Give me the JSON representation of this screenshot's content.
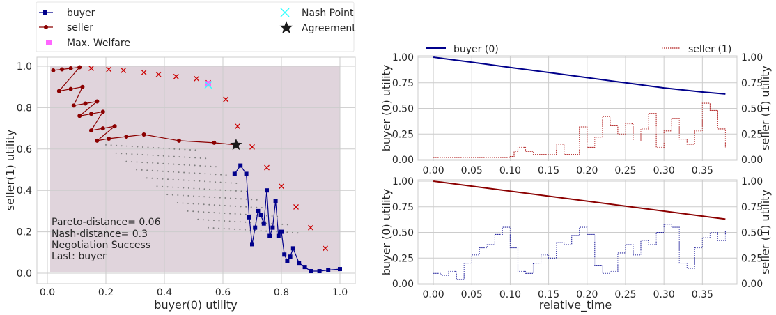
{
  "chart_data": [
    {
      "type": "scatter",
      "xlabel": "buyer(0) utility",
      "ylabel": "seller(1) utility",
      "xlim": [
        -0.03,
        1.05
      ],
      "ylim": [
        -0.04,
        1.04
      ],
      "xticks": [
        "0.0",
        "0.2",
        "0.4",
        "0.6",
        "0.8",
        "1.0"
      ],
      "yticks": [
        "0.0",
        "0.2",
        "0.4",
        "0.6",
        "0.8",
        "1.0"
      ],
      "grid": true,
      "legend_position": "top-left, outside",
      "legend": {
        "buyer": "buyer",
        "seller": "seller",
        "welfare": "Max. Welfare",
        "nash": "Nash Point",
        "agreement": "Agreement"
      },
      "annotations": {
        "pareto": "Pareto-distance= 0.06",
        "nash": "Nash-distance=  0.3",
        "status": "Negotiation Success",
        "last": "Last: buyer"
      },
      "colors": {
        "buyer": "#00008b",
        "seller": "#8b0000",
        "welfare": "#ff66ff",
        "nash": "#33ffff",
        "agreement": "#1a1a1a",
        "frontier": "#cc0000",
        "outcomes": "#7f7f7f",
        "region": "#e0d4dc"
      },
      "agreement": [
        0.645,
        0.62
      ],
      "nash_point": [
        0.55,
        0.91
      ],
      "max_welfare": [
        0.55,
        0.915
      ],
      "pareto_frontier": [
        [
          0.15,
          0.99
        ],
        [
          0.21,
          0.985
        ],
        [
          0.26,
          0.98
        ],
        [
          0.33,
          0.97
        ],
        [
          0.38,
          0.96
        ],
        [
          0.44,
          0.95
        ],
        [
          0.51,
          0.94
        ],
        [
          0.55,
          0.92
        ],
        [
          0.61,
          0.84
        ],
        [
          0.65,
          0.71
        ],
        [
          0.7,
          0.61
        ],
        [
          0.75,
          0.51
        ],
        [
          0.8,
          0.42
        ],
        [
          0.85,
          0.32
        ],
        [
          0.9,
          0.22
        ],
        [
          0.95,
          0.12
        ]
      ],
      "buyer_offers": [
        [
          0.64,
          0.48
        ],
        [
          0.66,
          0.52
        ],
        [
          0.68,
          0.48
        ],
        [
          0.69,
          0.27
        ],
        [
          0.7,
          0.14
        ],
        [
          0.71,
          0.22
        ],
        [
          0.72,
          0.3
        ],
        [
          0.73,
          0.28
        ],
        [
          0.74,
          0.24
        ],
        [
          0.75,
          0.4
        ],
        [
          0.76,
          0.18
        ],
        [
          0.77,
          0.22
        ],
        [
          0.78,
          0.35
        ],
        [
          0.79,
          0.18
        ],
        [
          0.8,
          0.2
        ],
        [
          0.81,
          0.09
        ],
        [
          0.82,
          0.06
        ],
        [
          0.83,
          0.08
        ],
        [
          0.84,
          0.12
        ],
        [
          0.86,
          0.05
        ],
        [
          0.88,
          0.03
        ],
        [
          0.9,
          0.01
        ],
        [
          0.93,
          0.01
        ],
        [
          0.96,
          0.015
        ],
        [
          1.0,
          0.02
        ]
      ],
      "seller_offers": [
        [
          0.02,
          0.98
        ],
        [
          0.05,
          0.985
        ],
        [
          0.08,
          0.99
        ],
        [
          0.11,
          0.995
        ],
        [
          0.04,
          0.88
        ],
        [
          0.08,
          0.89
        ],
        [
          0.12,
          0.9
        ],
        [
          0.09,
          0.81
        ],
        [
          0.13,
          0.82
        ],
        [
          0.17,
          0.83
        ],
        [
          0.11,
          0.76
        ],
        [
          0.15,
          0.77
        ],
        [
          0.19,
          0.78
        ],
        [
          0.15,
          0.69
        ],
        [
          0.19,
          0.7
        ],
        [
          0.23,
          0.71
        ],
        [
          0.17,
          0.64
        ],
        [
          0.21,
          0.65
        ],
        [
          0.27,
          0.66
        ],
        [
          0.33,
          0.67
        ],
        [
          0.45,
          0.64
        ],
        [
          0.57,
          0.63
        ],
        [
          0.645,
          0.62
        ]
      ]
    },
    {
      "type": "line",
      "xlabel": "",
      "ylabel": "buyer (0) utility",
      "ylabel_right": "seller (1) utility",
      "xlim": [
        -0.02,
        0.395
      ],
      "ylim": [
        0.0,
        1.0
      ],
      "xticks": [
        "0.00",
        "0.05",
        "0.10",
        "0.15",
        "0.20",
        "0.25",
        "0.30",
        "0.35"
      ],
      "yticks": [
        "0.00",
        "0.25",
        "0.50",
        "0.75",
        "1.00"
      ],
      "legend_position": "top",
      "series": [
        {
          "name": "buyer (0)",
          "color": "#00008b",
          "style": "solid",
          "x": [
            0.0,
            0.05,
            0.1,
            0.15,
            0.2,
            0.25,
            0.3,
            0.35,
            0.38
          ],
          "values": [
            1.0,
            0.95,
            0.9,
            0.85,
            0.8,
            0.75,
            0.7,
            0.66,
            0.64
          ]
        },
        {
          "name": "seller (1)",
          "color": "#b22222",
          "style": "dotted",
          "x": [
            0.0,
            0.1,
            0.105,
            0.11,
            0.12,
            0.13,
            0.16,
            0.17,
            0.19,
            0.2,
            0.21,
            0.22,
            0.23,
            0.24,
            0.25,
            0.26,
            0.27,
            0.28,
            0.29,
            0.3,
            0.31,
            0.32,
            0.33,
            0.34,
            0.35,
            0.36,
            0.37,
            0.38
          ],
          "values": [
            0.02,
            0.03,
            0.08,
            0.12,
            0.08,
            0.05,
            0.15,
            0.05,
            0.32,
            0.12,
            0.22,
            0.42,
            0.33,
            0.25,
            0.35,
            0.18,
            0.3,
            0.45,
            0.12,
            0.28,
            0.4,
            0.2,
            0.15,
            0.28,
            0.55,
            0.48,
            0.3,
            0.12
          ]
        }
      ]
    },
    {
      "type": "line",
      "xlabel": "relative_time",
      "ylabel": "buyer (0) utility",
      "ylabel_right": "seller (1) utility",
      "xlim": [
        -0.02,
        0.395
      ],
      "ylim": [
        0.0,
        1.0
      ],
      "xticks": [
        "0.00",
        "0.05",
        "0.10",
        "0.15",
        "0.20",
        "0.25",
        "0.30",
        "0.35"
      ],
      "yticks": [
        "0.00",
        "0.25",
        "0.50",
        "0.75",
        "1.00"
      ],
      "series": [
        {
          "name": "seller",
          "color": "#8b0000",
          "style": "solid",
          "x": [
            0.0,
            0.38
          ],
          "values": [
            1.0,
            0.63
          ]
        },
        {
          "name": "buyer",
          "color": "#2a2aa0",
          "style": "dotted",
          "x": [
            0.0,
            0.01,
            0.02,
            0.03,
            0.04,
            0.05,
            0.06,
            0.07,
            0.08,
            0.09,
            0.1,
            0.11,
            0.12,
            0.13,
            0.14,
            0.15,
            0.16,
            0.17,
            0.18,
            0.19,
            0.2,
            0.21,
            0.22,
            0.23,
            0.24,
            0.25,
            0.26,
            0.27,
            0.28,
            0.29,
            0.3,
            0.31,
            0.32,
            0.33,
            0.34,
            0.35,
            0.36,
            0.37,
            0.38
          ],
          "values": [
            0.1,
            0.08,
            0.12,
            0.04,
            0.2,
            0.28,
            0.35,
            0.38,
            0.48,
            0.55,
            0.35,
            0.12,
            0.1,
            0.2,
            0.28,
            0.25,
            0.4,
            0.38,
            0.47,
            0.55,
            0.48,
            0.18,
            0.1,
            0.12,
            0.3,
            0.38,
            0.28,
            0.42,
            0.38,
            0.5,
            0.58,
            0.55,
            0.2,
            0.15,
            0.35,
            0.45,
            0.5,
            0.42,
            0.52
          ]
        }
      ]
    }
  ]
}
